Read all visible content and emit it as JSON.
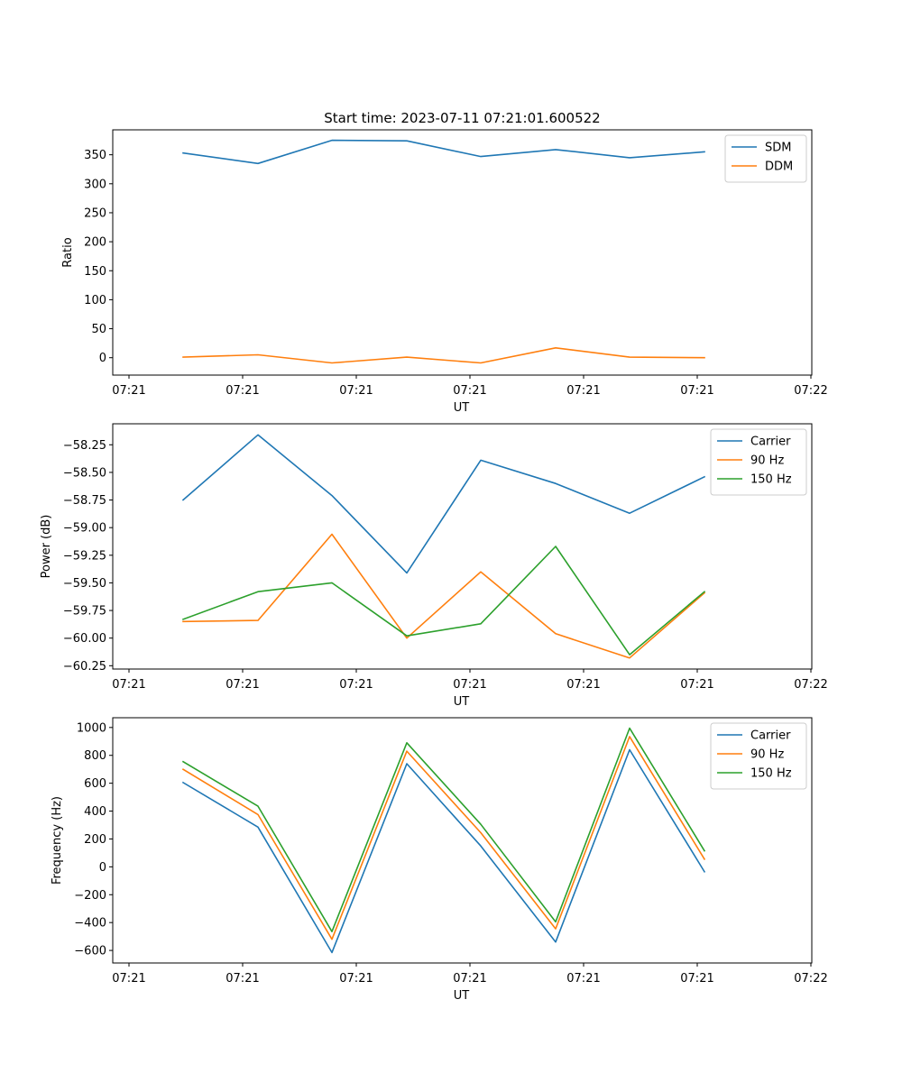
{
  "chart_data": [
    {
      "type": "line",
      "title": "Start time: 2023-07-11 07:21:01.600522",
      "xlabel": "UT",
      "ylabel": "Ratio",
      "x_tick_labels": [
        "07:21",
        "07:21",
        "07:21",
        "07:21",
        "07:21",
        "07:21",
        "07:22"
      ],
      "ylim": [
        -30,
        393
      ],
      "yticks": [
        0,
        50,
        100,
        150,
        200,
        250,
        300,
        350
      ],
      "ytick_labels": [
        "0",
        "50",
        "100",
        "150",
        "200",
        "250",
        "300",
        "350"
      ],
      "legend_position": "top-right",
      "series": [
        {
          "name": "SDM",
          "color": "#1f77b4",
          "values": [
            353,
            335,
            375,
            374,
            347,
            359,
            345,
            355
          ]
        },
        {
          "name": "DDM",
          "color": "#ff7f0e",
          "values": [
            1,
            5,
            -9,
            1,
            -9,
            17,
            1,
            0
          ]
        }
      ]
    },
    {
      "type": "line",
      "title": "",
      "xlabel": "UT",
      "ylabel": "Power (dB)",
      "x_tick_labels": [
        "07:21",
        "07:21",
        "07:21",
        "07:21",
        "07:21",
        "07:21",
        "07:22"
      ],
      "ylim": [
        -60.28,
        -58.06
      ],
      "yticks": [
        -60.25,
        -60.0,
        -59.75,
        -59.5,
        -59.25,
        -59.0,
        -58.75,
        -58.5,
        -58.25
      ],
      "ytick_labels": [
        "−60.25",
        "−60.00",
        "−59.75",
        "−59.50",
        "−59.25",
        "−59.00",
        "−58.75",
        "−58.50",
        "−58.25"
      ],
      "legend_position": "top-right",
      "series": [
        {
          "name": "Carrier",
          "color": "#1f77b4",
          "values": [
            -58.75,
            -58.16,
            -58.71,
            -59.41,
            -58.39,
            -58.6,
            -58.87,
            -58.54
          ]
        },
        {
          "name": "90 Hz",
          "color": "#ff7f0e",
          "values": [
            -59.85,
            -59.84,
            -59.06,
            -60.0,
            -59.4,
            -59.96,
            -60.18,
            -59.59
          ]
        },
        {
          "name": "150 Hz",
          "color": "#2ca02c",
          "values": [
            -59.83,
            -59.58,
            -59.5,
            -59.98,
            -59.87,
            -59.17,
            -60.15,
            -59.58
          ]
        }
      ]
    },
    {
      "type": "line",
      "title": "",
      "xlabel": "UT",
      "ylabel": "Frequency (Hz)",
      "x_tick_labels": [
        "07:21",
        "07:21",
        "07:21",
        "07:21",
        "07:21",
        "07:21",
        "07:22"
      ],
      "ylim": [
        -690,
        1070
      ],
      "yticks": [
        -600,
        -400,
        -200,
        0,
        200,
        400,
        600,
        800,
        1000
      ],
      "ytick_labels": [
        "−600",
        "−400",
        "−200",
        "0",
        "200",
        "400",
        "600",
        "800",
        "1000"
      ],
      "legend_position": "top-right",
      "series": [
        {
          "name": "Carrier",
          "color": "#1f77b4",
          "values": [
            605,
            285,
            -615,
            740,
            150,
            -540,
            840,
            -35
          ]
        },
        {
          "name": "90 Hz",
          "color": "#ff7f0e",
          "values": [
            700,
            375,
            -520,
            830,
            245,
            -445,
            935,
            55
          ]
        },
        {
          "name": "150 Hz",
          "color": "#2ca02c",
          "values": [
            755,
            435,
            -465,
            890,
            305,
            -395,
            995,
            115
          ]
        }
      ]
    }
  ]
}
